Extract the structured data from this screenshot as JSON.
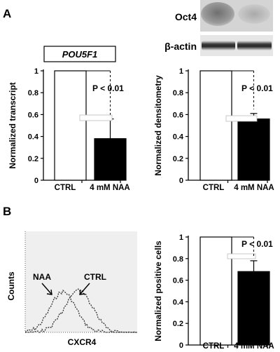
{
  "panel_labels": {
    "a": "A",
    "b": "B"
  },
  "blot": {
    "oct4_label": "Oct4",
    "actin_label": "β-actin"
  },
  "histogram": {
    "ylabel": "Counts",
    "xlabel": "CXCR4",
    "naa_label": "NAA",
    "ctrl_label": "CTRL"
  },
  "chart_data": [
    {
      "type": "bar",
      "title": "POU5F1",
      "categories": [
        "CTRL",
        "4 mM NAA"
      ],
      "values": [
        1.0,
        0.38
      ],
      "errors": [
        0,
        0.18
      ],
      "ylabel": "Normalized transcript",
      "ylim": [
        0,
        1
      ],
      "yticks": [
        "0",
        "0.2",
        "0.4",
        "0.6",
        "0.8",
        "1"
      ],
      "annotation": "P < 0.01"
    },
    {
      "type": "bar",
      "categories": [
        "CTRL",
        "4 mM NAA"
      ],
      "values": [
        1.0,
        0.56
      ],
      "errors": [
        0,
        0.05
      ],
      "ylabel": "Normalized densitometry",
      "ylim": [
        0,
        1
      ],
      "yticks": [
        "0",
        "0.2",
        "0.4",
        "0.6",
        "0.8",
        "1"
      ],
      "annotation": "P < 0.01"
    },
    {
      "type": "bar",
      "categories": [
        "CTRL",
        "4 mM NAA"
      ],
      "values": [
        1.0,
        0.68
      ],
      "errors": [
        0,
        0.1
      ],
      "ylabel": "Normalized positive cells",
      "ylim": [
        0,
        1
      ],
      "yticks": [
        "0",
        "0.2",
        "0.4",
        "0.6",
        "0.8",
        "1"
      ],
      "annotation": "P < 0.01"
    }
  ]
}
